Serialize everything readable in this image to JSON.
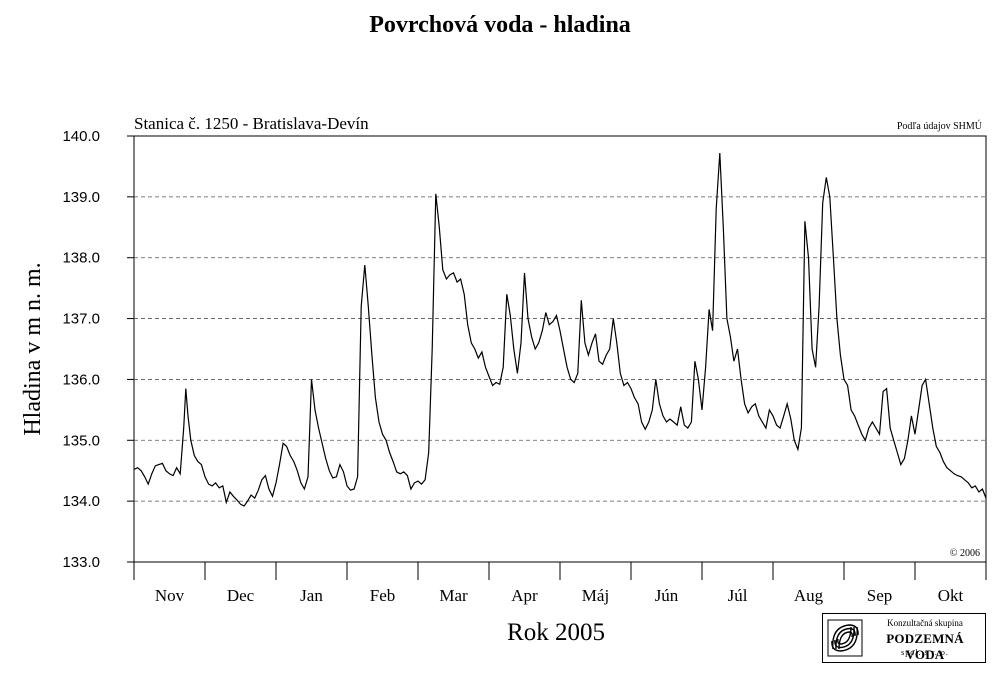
{
  "page": {
    "title": "Povrchová voda - hladina"
  },
  "chart_data": {
    "type": "line",
    "subtitle": "Stanica č. 1250 - Bratislava-Devín",
    "source": "Podľa údajov SHMÚ",
    "copyright": "© 2006",
    "xlabel": "Rok 2005",
    "ylabel": "Hladina v m n. m.",
    "ylim": [
      133.0,
      140.0
    ],
    "yticks": [
      "133.0",
      "134.0",
      "135.0",
      "136.0",
      "137.0",
      "138.0",
      "139.0",
      "140.0"
    ],
    "months": [
      "Nov",
      "Dec",
      "Jan",
      "Feb",
      "Mar",
      "Apr",
      "Máj",
      "Jún",
      "Júl",
      "Aug",
      "Sep",
      "Okt"
    ],
    "grid": "horizontal dashed",
    "series": [
      {
        "x": [
          0,
          0.05,
          0.1,
          0.15,
          0.2,
          0.25,
          0.3,
          0.35,
          0.4,
          0.45,
          0.5,
          0.55,
          0.6,
          0.65,
          0.7,
          0.73,
          0.76,
          0.8,
          0.85,
          0.9,
          0.95,
          1.0,
          1.05,
          1.1,
          1.15,
          1.2,
          1.25,
          1.3,
          1.35,
          1.4,
          1.45,
          1.5,
          1.55,
          1.6,
          1.65,
          1.7,
          1.75,
          1.8,
          1.85,
          1.9,
          1.95,
          2.0,
          2.05,
          2.1,
          2.15,
          2.2,
          2.25,
          2.3,
          2.35,
          2.4,
          2.45,
          2.5,
          2.55,
          2.6,
          2.65,
          2.7,
          2.75,
          2.8,
          2.85,
          2.9,
          2.95,
          3.0,
          3.05,
          3.1,
          3.15,
          3.2,
          3.25,
          3.3,
          3.35,
          3.4,
          3.45,
          3.5,
          3.55,
          3.6,
          3.65,
          3.7,
          3.75,
          3.8,
          3.85,
          3.9,
          3.95,
          4.0,
          4.05,
          4.1,
          4.15,
          4.2,
          4.25,
          4.3,
          4.35,
          4.4,
          4.45,
          4.5,
          4.55,
          4.6,
          4.65,
          4.7,
          4.75,
          4.8,
          4.85,
          4.9,
          4.95,
          5.0,
          5.05,
          5.1,
          5.15,
          5.2,
          5.25,
          5.3,
          5.35,
          5.4,
          5.45,
          5.5,
          5.55,
          5.6,
          5.65,
          5.7,
          5.75,
          5.8,
          5.85,
          5.9,
          5.95,
          6.0,
          6.05,
          6.1,
          6.15,
          6.2,
          6.25,
          6.3,
          6.35,
          6.4,
          6.45,
          6.5,
          6.55,
          6.6,
          6.65,
          6.7,
          6.75,
          6.8,
          6.85,
          6.9,
          6.95,
          7.0,
          7.05,
          7.1,
          7.15,
          7.2,
          7.25,
          7.3,
          7.35,
          7.4,
          7.45,
          7.5,
          7.55,
          7.6,
          7.65,
          7.7,
          7.75,
          7.8,
          7.85,
          7.9,
          7.95,
          8.0,
          8.05,
          8.1,
          8.15,
          8.2,
          8.25,
          8.3,
          8.35,
          8.4,
          8.45,
          8.5,
          8.55,
          8.6,
          8.65,
          8.7,
          8.75,
          8.8,
          8.85,
          8.9,
          8.95,
          9.0,
          9.05,
          9.1,
          9.15,
          9.2,
          9.25,
          9.3,
          9.35,
          9.4,
          9.45,
          9.5,
          9.55,
          9.6,
          9.65,
          9.7,
          9.75,
          9.8,
          9.85,
          9.9,
          9.95,
          10.0,
          10.05,
          10.1,
          10.15,
          10.2,
          10.25,
          10.3,
          10.35,
          10.4,
          10.45,
          10.5,
          10.55,
          10.6,
          10.65,
          10.7,
          10.75,
          10.8,
          10.85,
          10.9,
          10.95,
          11.0,
          11.05,
          11.1,
          11.15,
          11.2,
          11.25,
          11.3,
          11.35,
          11.4,
          11.45,
          11.5,
          11.55,
          11.6,
          11.65,
          11.7,
          11.75,
          11.8,
          11.85,
          11.9,
          11.95,
          12.0
        ],
        "values": [
          134.52,
          134.55,
          134.5,
          134.4,
          134.28,
          134.45,
          134.58,
          134.6,
          134.62,
          134.5,
          134.45,
          134.42,
          134.55,
          134.45,
          135.2,
          135.85,
          135.4,
          135.0,
          134.75,
          134.65,
          134.6,
          134.4,
          134.28,
          134.25,
          134.3,
          134.22,
          134.25,
          133.98,
          134.15,
          134.08,
          134.02,
          133.95,
          133.92,
          134.0,
          134.1,
          134.05,
          134.18,
          134.35,
          134.42,
          134.2,
          134.08,
          134.3,
          134.6,
          134.95,
          134.9,
          134.75,
          134.65,
          134.5,
          134.3,
          134.2,
          134.4,
          136.0,
          135.5,
          135.2,
          134.95,
          134.7,
          134.5,
          134.38,
          134.4,
          134.6,
          134.48,
          134.25,
          134.18,
          134.2,
          134.4,
          137.2,
          137.88,
          137.2,
          136.4,
          135.7,
          135.3,
          135.1,
          135.0,
          134.8,
          134.65,
          134.48,
          134.45,
          134.48,
          134.42,
          134.2,
          134.3,
          134.33,
          134.28,
          134.35,
          134.8,
          136.5,
          139.05,
          138.5,
          137.8,
          137.65,
          137.72,
          137.75,
          137.6,
          137.65,
          137.4,
          136.9,
          136.6,
          136.5,
          136.35,
          136.45,
          136.2,
          136.05,
          135.9,
          135.95,
          135.92,
          136.2,
          137.4,
          137.05,
          136.5,
          136.1,
          136.6,
          137.75,
          137.0,
          136.7,
          136.5,
          136.6,
          136.8,
          137.1,
          136.9,
          136.95,
          137.05,
          136.8,
          136.5,
          136.2,
          136.0,
          135.95,
          136.1,
          137.3,
          136.6,
          136.4,
          136.6,
          136.75,
          136.3,
          136.25,
          136.4,
          136.5,
          137.0,
          136.6,
          136.1,
          135.9,
          135.95,
          135.85,
          135.7,
          135.6,
          135.3,
          135.18,
          135.3,
          135.5,
          136.0,
          135.6,
          135.4,
          135.3,
          135.35,
          135.3,
          135.25,
          135.55,
          135.25,
          135.2,
          135.3,
          136.3,
          136.0,
          135.5,
          136.2,
          137.15,
          136.8,
          138.8,
          139.72,
          138.5,
          137.0,
          136.7,
          136.3,
          136.5,
          136.0,
          135.6,
          135.45,
          135.55,
          135.6,
          135.4,
          135.3,
          135.2,
          135.5,
          135.4,
          135.25,
          135.2,
          135.4,
          135.6,
          135.35,
          135.0,
          134.85,
          135.2,
          138.6,
          138.0,
          136.5,
          136.2,
          137.2,
          138.9,
          139.32,
          139.0,
          138.0,
          137.0,
          136.4,
          136.0,
          135.9,
          135.5,
          135.4,
          135.25,
          135.1,
          135.0,
          135.2,
          135.3,
          135.2,
          135.1,
          135.8,
          135.85,
          135.2,
          135.0,
          134.8,
          134.6,
          134.7,
          135.0,
          135.4,
          135.1,
          135.5,
          135.9,
          136.0,
          135.6,
          135.2,
          134.9,
          134.8,
          134.65,
          134.55,
          134.5,
          134.45,
          134.42,
          134.4,
          134.35,
          134.3,
          134.22,
          134.25,
          134.15,
          134.2,
          134.05
        ]
      }
    ]
  },
  "logo": {
    "line1": "Konzultačná skupina",
    "line2": "PODZEMNÁ VODA",
    "line3": "spol. s r. o."
  }
}
